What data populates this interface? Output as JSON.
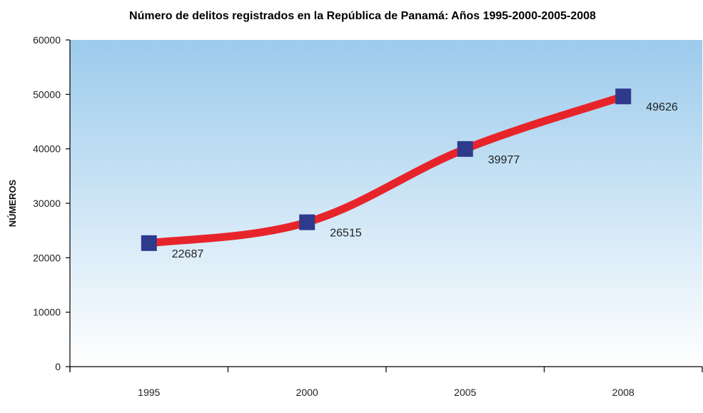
{
  "chart_data": {
    "type": "line",
    "title": "Número de delitos registrados en la República de Panamá: Años 1995-2000-2005-2008",
    "xlabel": "",
    "ylabel": "NÚMEROS",
    "categories": [
      "1995",
      "2000",
      "2005",
      "2008"
    ],
    "series": [
      {
        "values": [
          22687,
          26515,
          39977,
          49626
        ],
        "color": "#e8242b",
        "marker_color": "#2e3a8c"
      }
    ],
    "data_labels": [
      "22687",
      "26515",
      "39977",
      "49626"
    ],
    "ylim": [
      0,
      60000
    ],
    "yticks": [
      "0",
      "10000",
      "20000",
      "30000",
      "40000",
      "50000",
      "60000"
    ],
    "grid": false,
    "legend": "none",
    "background_gradient": {
      "top": "#9ccbec",
      "bottom": "#ffffff"
    }
  }
}
